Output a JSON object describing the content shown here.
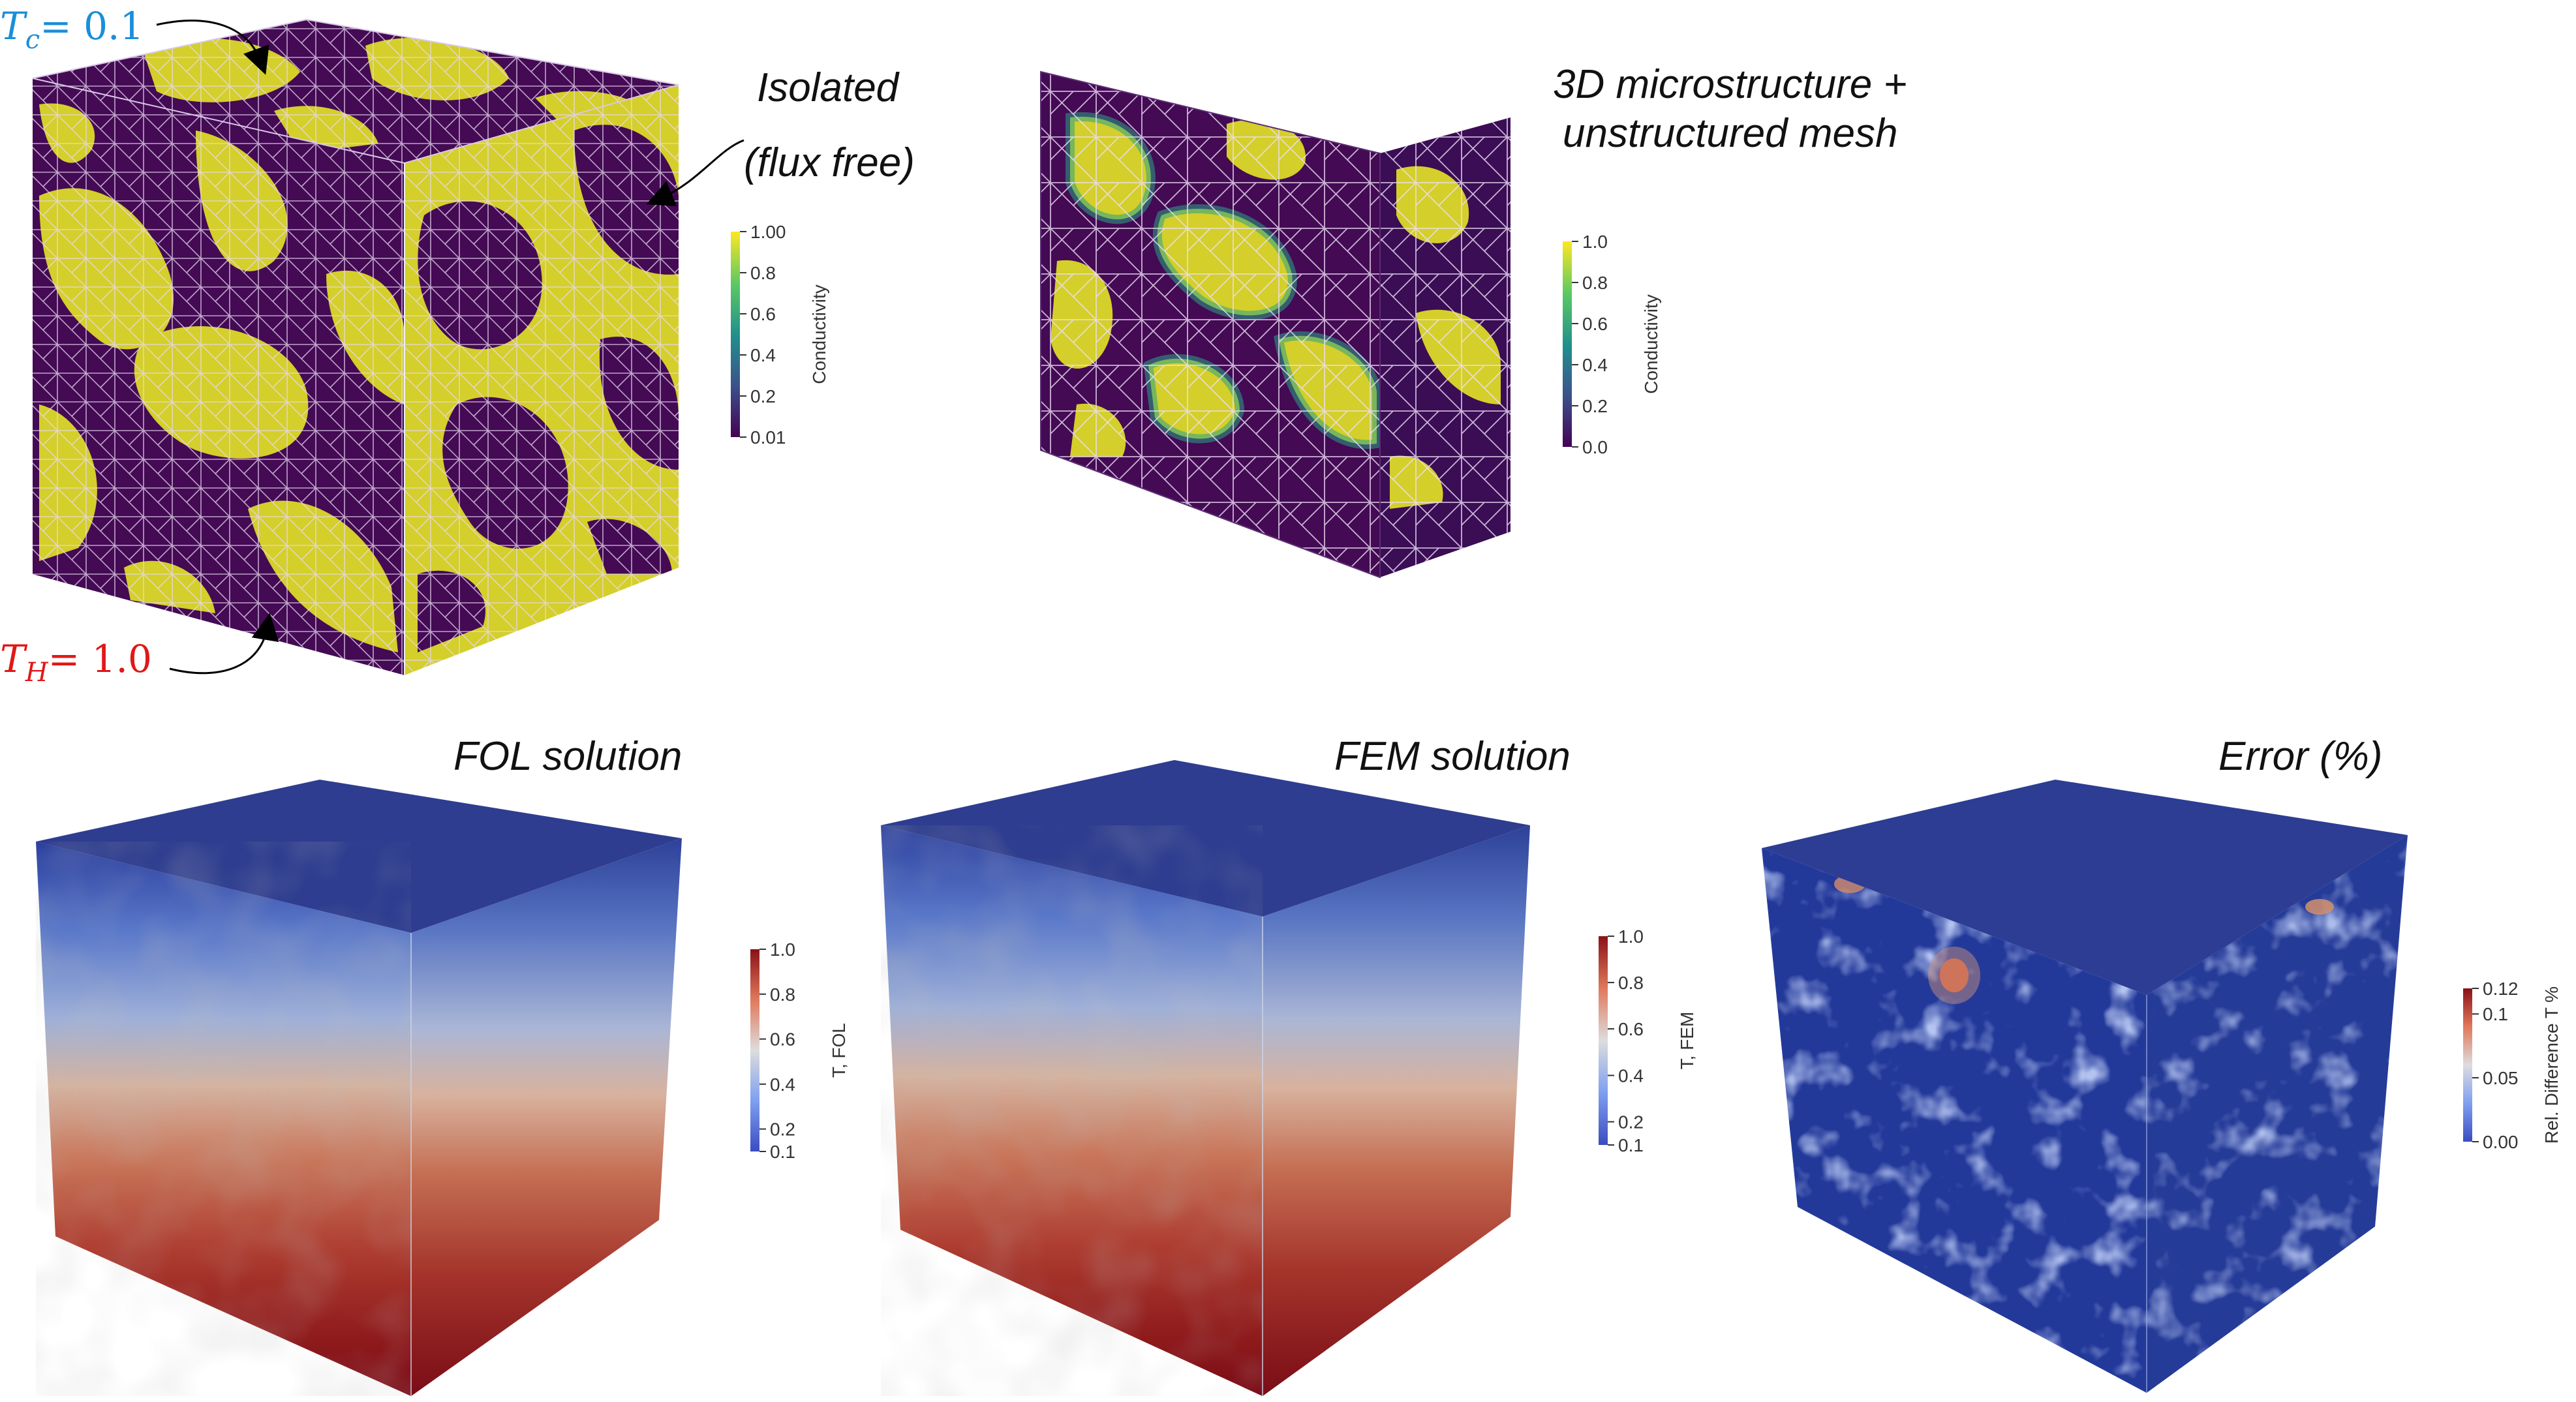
{
  "boundary_conditions": {
    "cold": {
      "symbol": "T",
      "subscript": "c",
      "rhs": "= 0.1",
      "color": "#1a8fd8"
    },
    "hot": {
      "symbol": "T",
      "subscript": "H",
      "rhs": "= 1.0",
      "color": "#e01818"
    },
    "isolated_line1": "Isolated",
    "isolated_line2": "(flux free)"
  },
  "microstructure": {
    "label_line1": "3D microstructure +",
    "label_line2": "unstructured mesh"
  },
  "panels": {
    "fol": {
      "title": "FOL solution"
    },
    "fem": {
      "title": "FEM solution"
    },
    "error": {
      "title": "Error (%)"
    }
  },
  "colorbars": [
    {
      "id": "cb1",
      "title": "Conductivity",
      "ticks": [
        "1.00",
        "0.8",
        "0.6",
        "0.4",
        "0.2",
        "0.01"
      ],
      "colormap": "viridis"
    },
    {
      "id": "cb2",
      "title": "Conductivity",
      "ticks": [
        "1.0",
        "0.8",
        "0.6",
        "0.4",
        "0.2",
        "0.0"
      ],
      "colormap": "viridis"
    },
    {
      "id": "cb3",
      "title": "T, FOL",
      "ticks": [
        "1.0",
        "0.8",
        "0.6",
        "0.4",
        "0.2",
        "0.1"
      ],
      "colormap": "coolwarm"
    },
    {
      "id": "cb4",
      "title": "T, FEM",
      "ticks": [
        "1.0",
        "0.8",
        "0.6",
        "0.4",
        "0.2",
        "0.1"
      ],
      "colormap": "coolwarm"
    },
    {
      "id": "cb5",
      "title": "Rel. Difference T %",
      "ticks": [
        "0.12",
        "0.1",
        "0.05",
        "0.00"
      ],
      "colormap": "coolwarm"
    }
  ],
  "colors": {
    "viridis_high": "#d4cf2a",
    "viridis_low": "#440a54",
    "coolwarm_high": "#8a1116",
    "coolwarm_low": "#3b4cc0",
    "error_bg": "#23399a"
  }
}
